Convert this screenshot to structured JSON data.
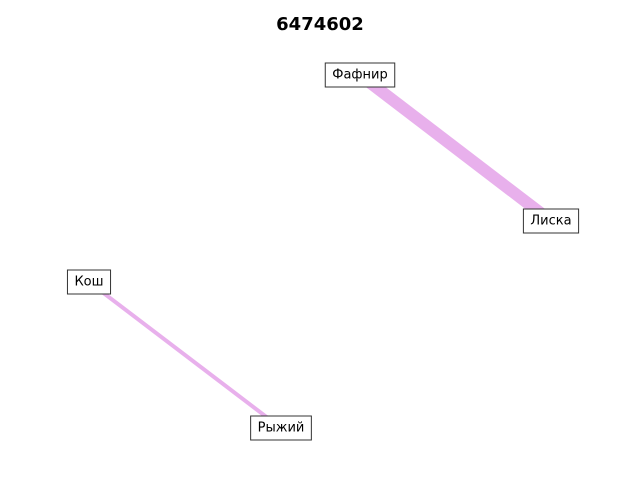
{
  "title": "6474602",
  "colors": {
    "edge": "#e8b0ec",
    "node_border": "#333333",
    "node_fill": "#ffffff"
  },
  "nodes": [
    {
      "id": "fafnir",
      "label": "Фафнир"
    },
    {
      "id": "liska",
      "label": "Лиска"
    },
    {
      "id": "kosh",
      "label": "Кош"
    },
    {
      "id": "ryzhiy",
      "label": "Рыжий"
    }
  ],
  "edges": [
    {
      "source": "fafnir",
      "target": "liska",
      "weight": 3
    },
    {
      "source": "kosh",
      "target": "ryzhiy",
      "weight": 1
    }
  ]
}
